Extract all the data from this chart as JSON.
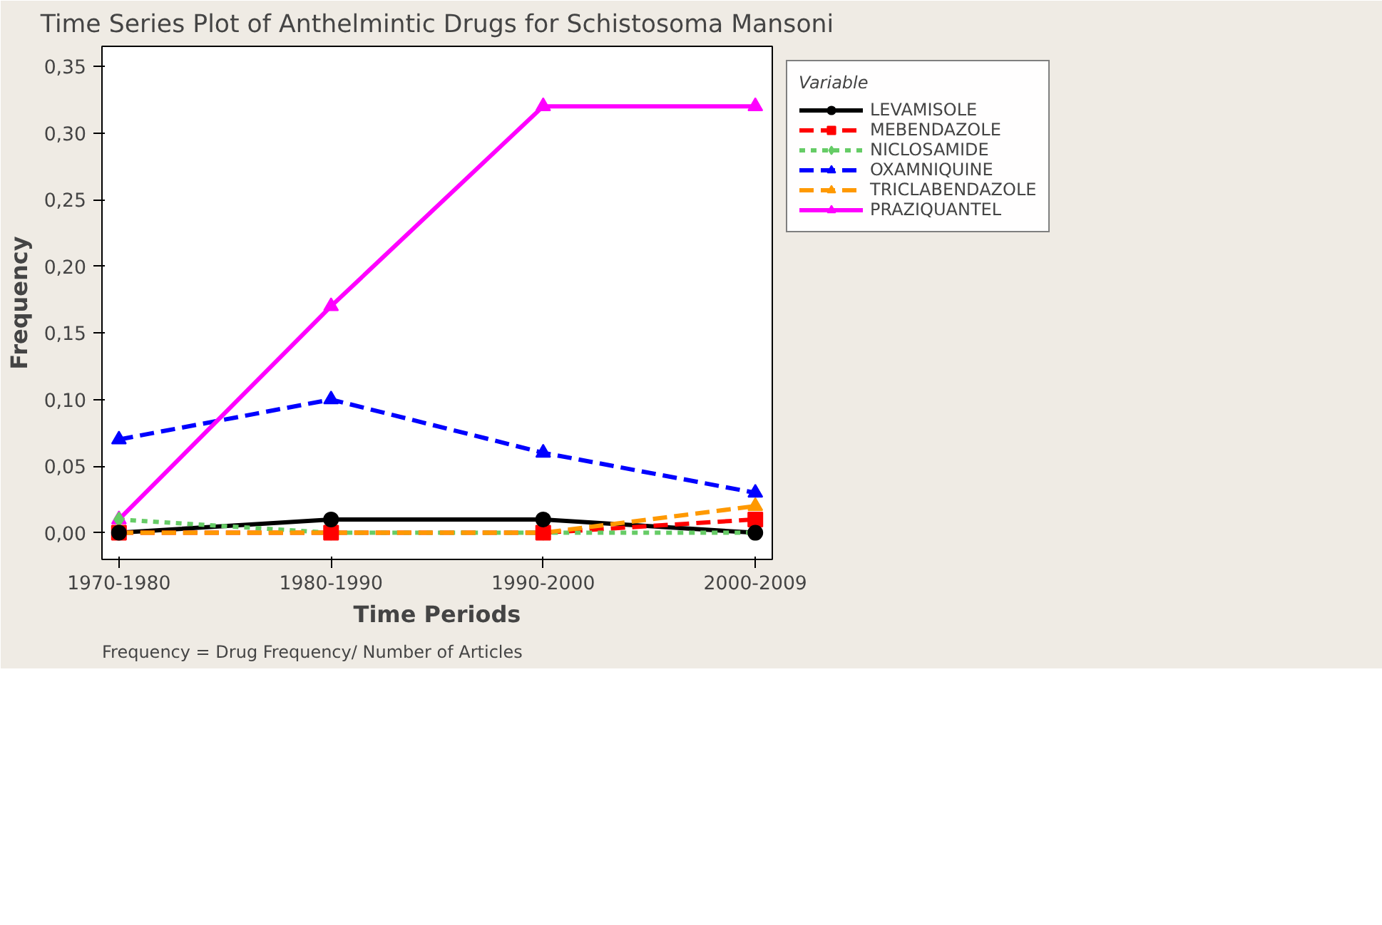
{
  "chart_data": {
    "type": "line",
    "title": "Time Series Plot of Anthelmintic Drugs for Schistosoma Mansoni",
    "xlabel": "Time Periods",
    "ylabel": "Frequency",
    "legend_title": "Variable",
    "categories": [
      "1970-1980",
      "1980-1990",
      "1990-2000",
      "2000-2009"
    ],
    "series": [
      {
        "name": "LEVAMISOLE",
        "color": "#000000",
        "marker": "circle",
        "line_style": "solid",
        "values": [
          0,
          0.01,
          0.01,
          0
        ]
      },
      {
        "name": "MEBENDAZOLE",
        "color": "#ff0000",
        "marker": "square",
        "line_style": "dashed",
        "values": [
          0,
          0,
          0,
          0.01
        ]
      },
      {
        "name": "NICLOSAMIDE",
        "color": "#66cc66",
        "marker": "diamond",
        "line_style": "dotted",
        "values": [
          0.01,
          0,
          0,
          0
        ]
      },
      {
        "name": "OXAMNIQUINE",
        "color": "#0000ff",
        "marker": "triangle",
        "line_style": "dashed",
        "values": [
          0.07,
          0.1,
          0.06,
          0.03
        ]
      },
      {
        "name": "TRICLABENDAZOLE",
        "color": "#ff9900",
        "marker": "triangle",
        "line_style": "dashed",
        "values": [
          0,
          0,
          0,
          0.02
        ]
      },
      {
        "name": "PRAZIQUANTEL",
        "color": "#ff00ff",
        "marker": "triangle",
        "line_style": "solid",
        "values": [
          0.01,
          0.17,
          0.32,
          0.32
        ]
      }
    ],
    "ylim": [
      -0.02,
      0.365
    ],
    "yticks": [
      {
        "value": 0,
        "label": "0,00"
      },
      {
        "value": 0.05,
        "label": "0,05"
      },
      {
        "value": 0.1,
        "label": "0,10"
      },
      {
        "value": 0.15,
        "label": "0,15"
      },
      {
        "value": 0.2,
        "label": "0,20"
      },
      {
        "value": 0.25,
        "label": "0,25"
      },
      {
        "value": 0.3,
        "label": "0,30"
      },
      {
        "value": 0.35,
        "label": "0,35"
      }
    ],
    "grid": false,
    "legend": "right",
    "annotations": [
      "Frequency  = Drug Frequency/ Number of Articles"
    ]
  }
}
